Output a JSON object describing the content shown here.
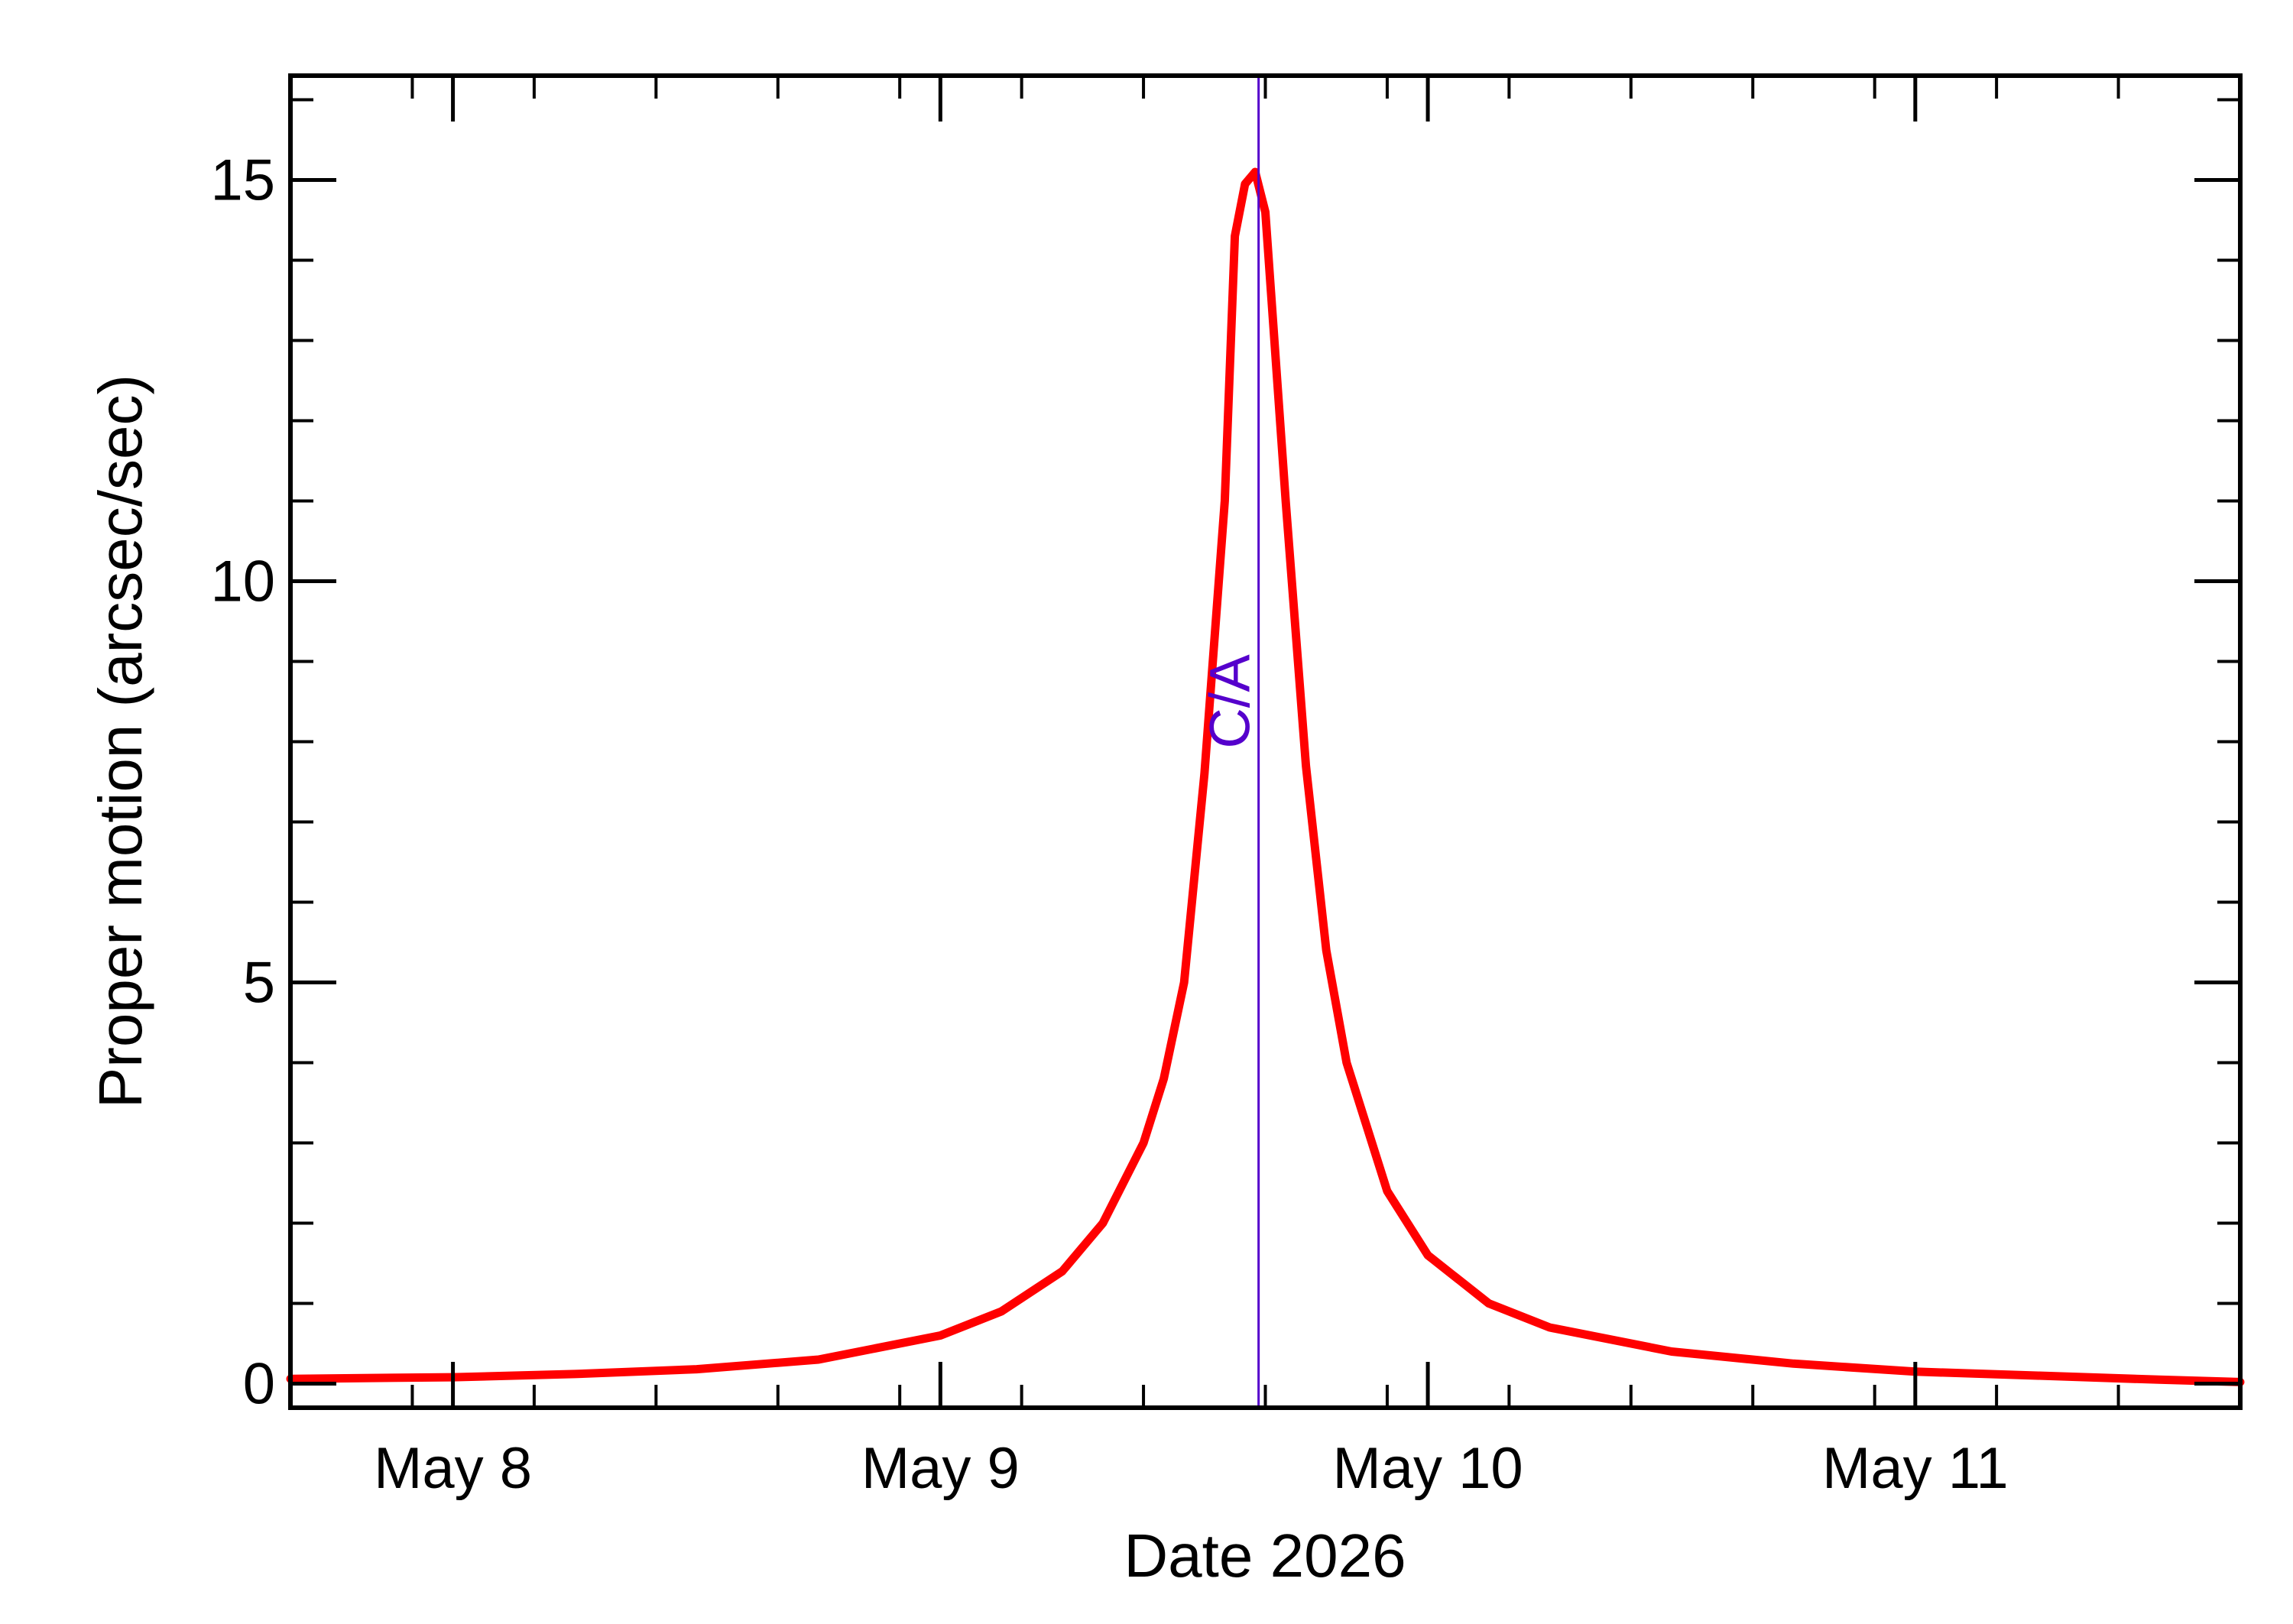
{
  "chart_data": {
    "type": "line",
    "title": "",
    "xlabel": "Date 2026",
    "ylabel": "Proper motion (arcsec/sec)",
    "x_ticks": [
      "2026-05-08",
      "2026-05-09",
      "2026-05-10",
      "2026-05-11"
    ],
    "x_tick_labels": [
      "May  8",
      "May  9",
      "May 10",
      "May 11"
    ],
    "xlim": [
      "2026-05-07T16:00",
      "2026-05-11T16:00"
    ],
    "ylim": [
      -0.3,
      16.3
    ],
    "y_ticks": [
      0,
      5,
      10,
      15
    ],
    "y_tick_labels": [
      "0",
      "5",
      "10",
      "15"
    ],
    "grid": false,
    "series": [
      {
        "color": "#ff0000",
        "points": [
          {
            "x": "2026-05-07T16:00",
            "y": 0.06
          },
          {
            "x": "2026-05-08T00:00",
            "y": 0.08
          },
          {
            "x": "2026-05-08T06:00",
            "y": 0.12
          },
          {
            "x": "2026-05-08T12:00",
            "y": 0.18
          },
          {
            "x": "2026-05-08T18:00",
            "y": 0.3
          },
          {
            "x": "2026-05-09T00:00",
            "y": 0.6
          },
          {
            "x": "2026-05-09T03:00",
            "y": 0.9
          },
          {
            "x": "2026-05-09T06:00",
            "y": 1.4
          },
          {
            "x": "2026-05-09T08:00",
            "y": 2.0
          },
          {
            "x": "2026-05-09T10:00",
            "y": 3.0
          },
          {
            "x": "2026-05-09T11:00",
            "y": 3.8
          },
          {
            "x": "2026-05-09T12:00",
            "y": 5.0
          },
          {
            "x": "2026-05-09T13:00",
            "y": 7.6
          },
          {
            "x": "2026-05-09T14:00",
            "y": 11.0
          },
          {
            "x": "2026-05-09T14:30",
            "y": 14.3
          },
          {
            "x": "2026-05-09T15:00",
            "y": 14.95
          },
          {
            "x": "2026-05-09T15:30",
            "y": 15.1
          },
          {
            "x": "2026-05-09T16:00",
            "y": 14.6
          },
          {
            "x": "2026-05-09T17:00",
            "y": 11.0
          },
          {
            "x": "2026-05-09T18:00",
            "y": 7.7
          },
          {
            "x": "2026-05-09T19:00",
            "y": 5.4
          },
          {
            "x": "2026-05-09T20:00",
            "y": 4.0
          },
          {
            "x": "2026-05-09T22:00",
            "y": 2.4
          },
          {
            "x": "2026-05-10T00:00",
            "y": 1.6
          },
          {
            "x": "2026-05-10T03:00",
            "y": 1.0
          },
          {
            "x": "2026-05-10T06:00",
            "y": 0.7
          },
          {
            "x": "2026-05-10T12:00",
            "y": 0.4
          },
          {
            "x": "2026-05-10T18:00",
            "y": 0.25
          },
          {
            "x": "2026-05-11T00:00",
            "y": 0.15
          },
          {
            "x": "2026-05-11T06:00",
            "y": 0.1
          },
          {
            "x": "2026-05-11T12:00",
            "y": 0.05
          },
          {
            "x": "2026-05-11T16:00",
            "y": 0.02
          }
        ]
      }
    ],
    "annotations": [
      {
        "type": "vertical_line",
        "x": "2026-05-09T15:40",
        "label": "C/A",
        "color": "#5500cc"
      }
    ]
  }
}
